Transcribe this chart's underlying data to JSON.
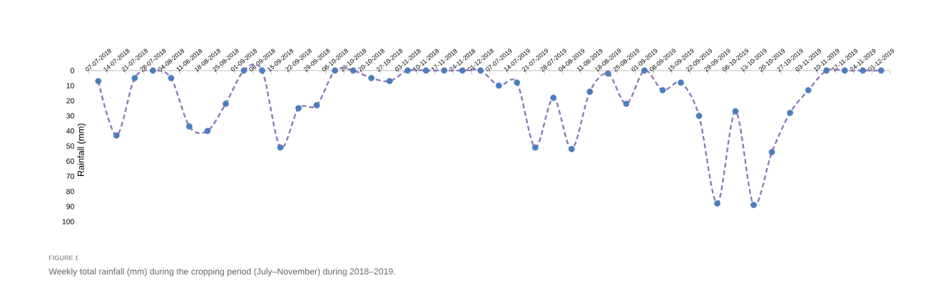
{
  "chart_data": {
    "type": "line",
    "ylabel": "Rainfall (mm)",
    "categories": [
      "07-07-2018",
      "14-07-2018",
      "21-07-2018",
      "28-07-2018",
      "04-08-2018",
      "11-08-2018",
      "18-08-2018",
      "25-08-2018",
      "01-09-2018",
      "08-09-2018",
      "15-09-2018",
      "22-09-2018",
      "29-09-2018",
      "06-10-2018",
      "13-10-2018",
      "20-10-2018",
      "27-10-2018",
      "03-11-2018",
      "10-11-2018",
      "17-11-2018",
      "24-11-2018",
      "01-12-2018",
      "07-07-2019",
      "14-07-2019",
      "21-07-2019",
      "28-07-2019",
      "04-08-2019",
      "11-08-2019",
      "18-08-2019",
      "25-08-2019",
      "01-09-2019",
      "08-09-2019",
      "15-09-2019",
      "22-09-2019",
      "29-09-2019",
      "06-10-2019",
      "13-10-2019",
      "20-10-2019",
      "27-10-2019",
      "03-11-2019",
      "10-11-2019",
      "17-11-2019",
      "24-11-2019",
      "01-12-2019"
    ],
    "series": [
      {
        "color": "#8f79b8",
        "line_style": "dashed",
        "marker": "none",
        "values": [
          7,
          43,
          5,
          0,
          5,
          37,
          40,
          22,
          0,
          0,
          51,
          25,
          23,
          0,
          0,
          5,
          7,
          0,
          0,
          0,
          0,
          0,
          10,
          8,
          51,
          18,
          52,
          14,
          2,
          22,
          0,
          13,
          8,
          30,
          88,
          27,
          89,
          54,
          28,
          13,
          0,
          0,
          0,
          0
        ]
      },
      {
        "type": "scatter",
        "color": "#4a7ebf",
        "marker": "circle",
        "values": [
          7,
          43,
          5,
          0,
          5,
          37,
          40,
          22,
          0,
          0,
          51,
          25,
          23,
          0,
          0,
          5,
          7,
          0,
          0,
          0,
          0,
          0,
          10,
          8,
          51,
          18,
          52,
          14,
          2,
          22,
          0,
          13,
          8,
          30,
          88,
          27,
          89,
          54,
          28,
          13,
          0,
          0,
          0,
          0
        ]
      }
    ],
    "ylim": [
      100,
      0
    ],
    "yticks": [
      0,
      10,
      20,
      30,
      40,
      50,
      60,
      70,
      80,
      90,
      100
    ],
    "grid": false,
    "annotations": [
      "FIGURE 1",
      "Weekly total rainfall (mm) during the cropping period (July–November) during 2018–2019."
    ]
  }
}
